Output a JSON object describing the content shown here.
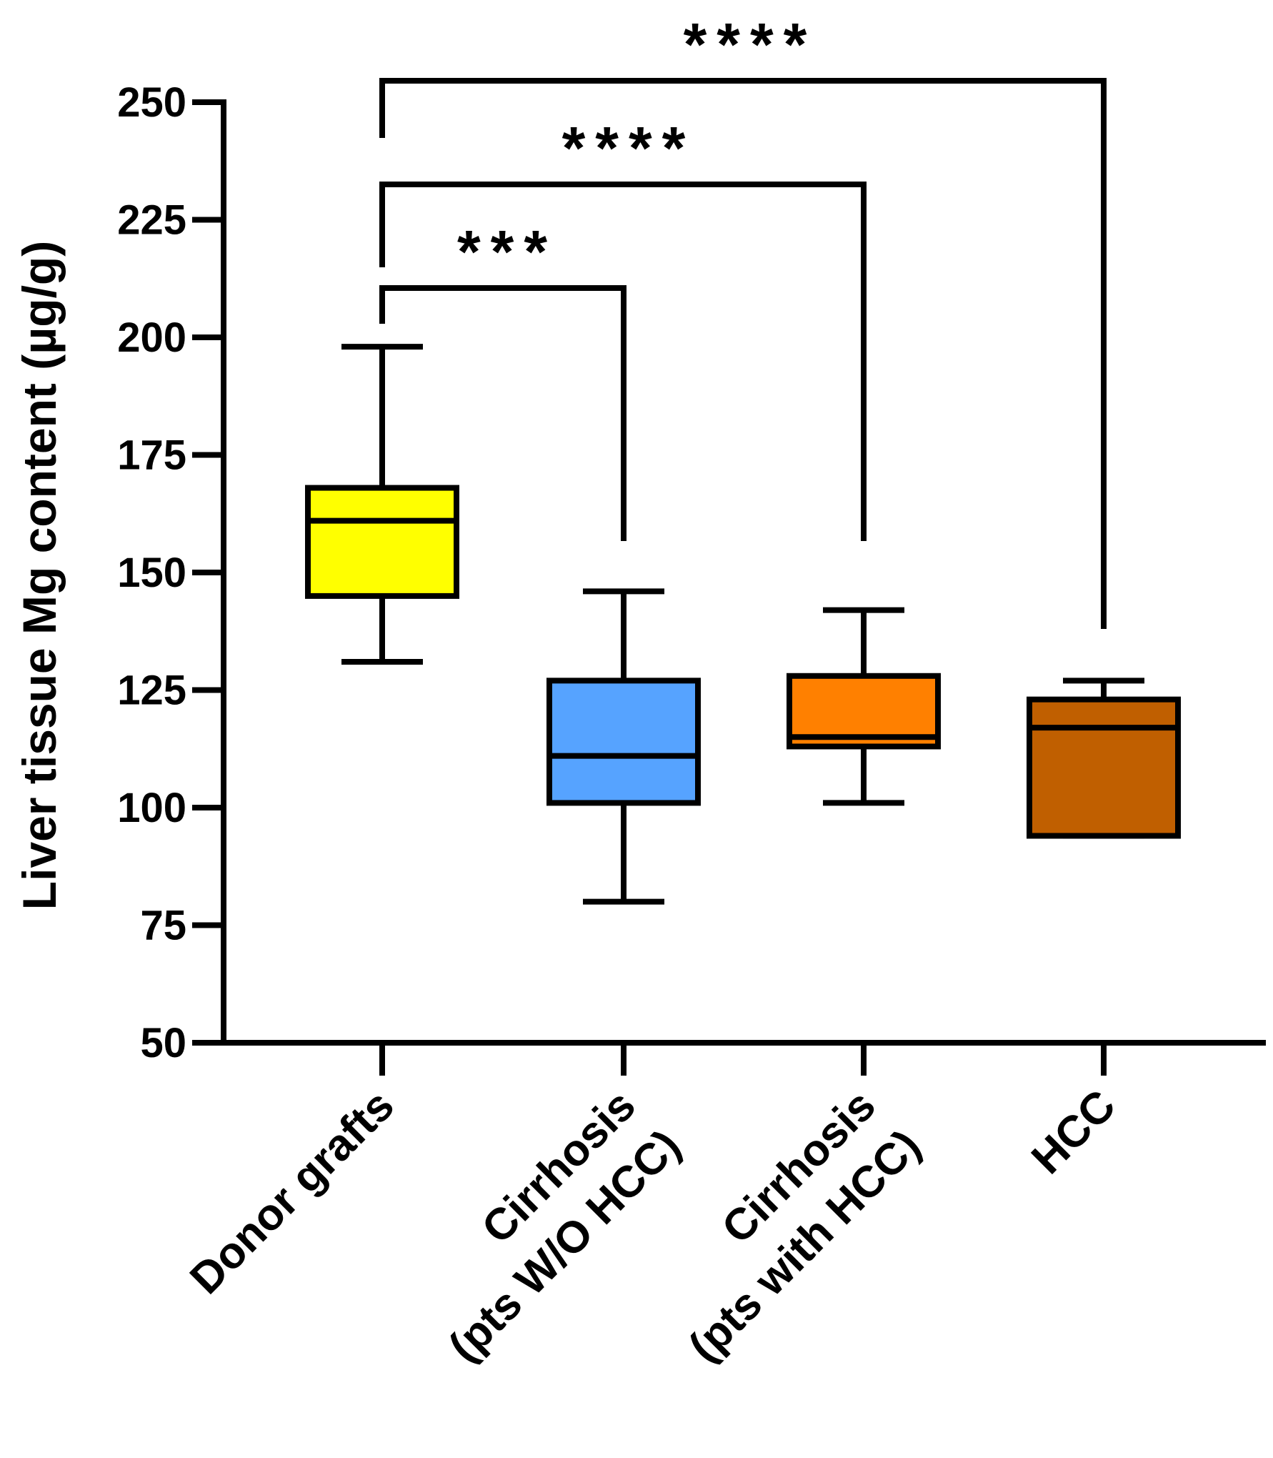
{
  "chart_data": {
    "type": "box",
    "ylabel": "Liver tissue Mg content (µg/g)",
    "xlabel": "",
    "ylim": [
      50,
      250
    ],
    "yticks": [
      50,
      75,
      100,
      125,
      150,
      175,
      200,
      225,
      250
    ],
    "categories": [
      {
        "line1": "Donor grafts",
        "line2": ""
      },
      {
        "line1": "Cirrhosis",
        "line2": "(pts W/O HCC)"
      },
      {
        "line1": "Cirrhosis",
        "line2": "(pts with HCC)"
      },
      {
        "line1": "HCC",
        "line2": ""
      }
    ],
    "boxes": [
      {
        "min": 131,
        "q1": 145,
        "median": 161,
        "q3": 168,
        "max": 198,
        "color": "#FFFF00"
      },
      {
        "min": 80,
        "q1": 101,
        "median": 111,
        "q3": 127,
        "max": 146,
        "color": "#56A3FF"
      },
      {
        "min": 101,
        "q1": 113,
        "median": 115,
        "q3": 128,
        "max": 142,
        "color": "#FF8000"
      },
      {
        "min": 94,
        "q1": 94,
        "median": 117,
        "q3": 123,
        "max": 127,
        "color": "#C05F00"
      }
    ],
    "significance": [
      {
        "from": 0,
        "to": 1,
        "label": "***"
      },
      {
        "from": 0,
        "to": 2,
        "label": "****"
      },
      {
        "from": 0,
        "to": 3,
        "label": "****"
      }
    ]
  }
}
